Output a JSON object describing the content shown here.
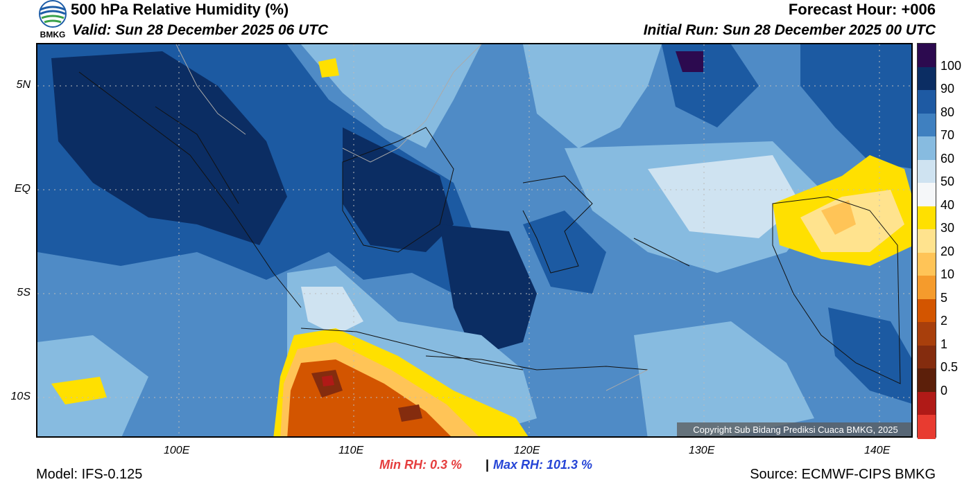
{
  "header": {
    "title": "500 hPa Relative Humidity (%)",
    "valid": "Valid: Sun 28 December 2025 06 UTC",
    "forecast_hour": "Forecast Hour: +006",
    "initial_run": "Initial Run: Sun 28 December 2025 00 UTC",
    "logo_text": "BMKG"
  },
  "axes": {
    "lat_labels": [
      "5N",
      "EQ",
      "5S",
      "10S"
    ],
    "lon_labels": [
      "100E",
      "110E",
      "120E",
      "130E",
      "140E"
    ]
  },
  "colorbar": {
    "labels": [
      "100",
      "90",
      "80",
      "70",
      "60",
      "50",
      "40",
      "30",
      "20",
      "10",
      "5",
      "2",
      "1",
      "0.5",
      "0"
    ],
    "colors": [
      "#2c0a4f",
      "#0b2d63",
      "#1e5aa3",
      "#3f80c0",
      "#87bbe0",
      "#cfe3f1",
      "#f5f7f9",
      "#ffe000",
      "#ffe38e",
      "#ffc457",
      "#f59b2c",
      "#d35500",
      "#a83f0c",
      "#842c0e",
      "#5c1f0a",
      "#b01a17",
      "#e83b30"
    ]
  },
  "stats": {
    "min_rh": "Min RH:   0.3 %",
    "separator": "|",
    "max_rh": "Max RH: 101.3 %"
  },
  "footer": {
    "model": "Model: IFS-0.125",
    "source": "Source: ECMWF-CIPS BMKG",
    "copyright": "Copyright Sub Bidang Prediksi Cuaca BMKG, 2025"
  }
}
